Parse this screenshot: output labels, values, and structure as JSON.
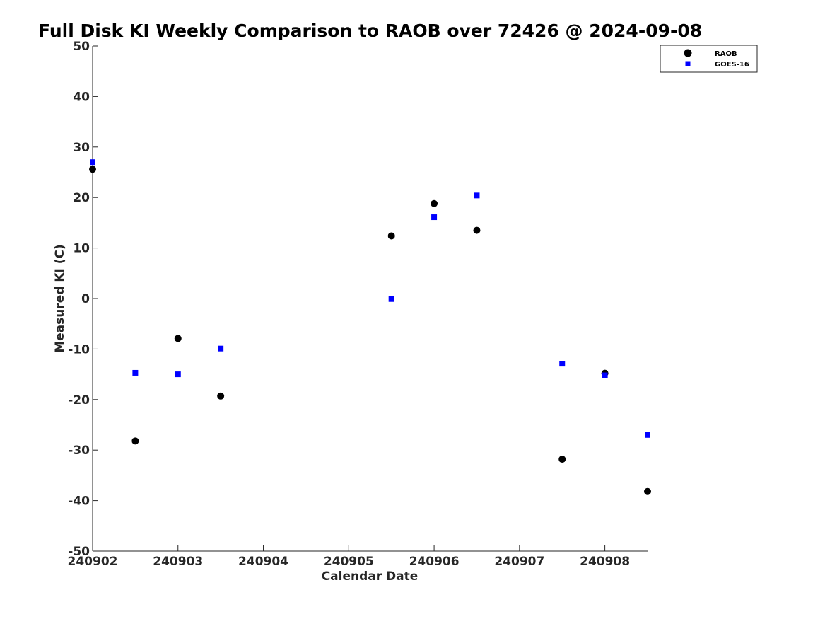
{
  "chart_data": {
    "type": "scatter",
    "title": "Full Disk KI Weekly Comparison to RAOB over 72426 @ 2024-09-08",
    "xlabel": "Calendar Date",
    "ylabel": "Measured KI (C)",
    "xlim": [
      "2024-09-02T00:00",
      "2024-09-08T12:00"
    ],
    "ylim": [
      -50,
      50
    ],
    "x_ticks": [
      "2024-09-02",
      "2024-09-03",
      "2024-09-04",
      "2024-09-05",
      "2024-09-06",
      "2024-09-07",
      "2024-09-08"
    ],
    "x_tick_labels": [
      "240902",
      "240903",
      "240904",
      "240905",
      "240906",
      "240907",
      "240908"
    ],
    "y_ticks": [
      -50,
      -40,
      -30,
      -20,
      -10,
      0,
      10,
      20,
      30,
      40,
      50
    ],
    "y_tick_labels": [
      "-50",
      "-40",
      "-30",
      "-20",
      "-10",
      "0",
      "10",
      "20",
      "30",
      "40",
      "50"
    ],
    "grid": false,
    "legend_position": "top-right",
    "series": [
      {
        "name": "RAOB",
        "marker": "circle",
        "color": "#000000",
        "points": [
          {
            "x": "2024-09-02T00:00",
            "y": 25.6
          },
          {
            "x": "2024-09-02T12:00",
            "y": -28.2
          },
          {
            "x": "2024-09-03T00:00",
            "y": -7.9
          },
          {
            "x": "2024-09-03T12:00",
            "y": -19.3
          },
          {
            "x": "2024-09-05T12:00",
            "y": 12.4
          },
          {
            "x": "2024-09-06T00:00",
            "y": 18.8
          },
          {
            "x": "2024-09-06T12:00",
            "y": 13.5
          },
          {
            "x": "2024-09-07T12:00",
            "y": -31.8
          },
          {
            "x": "2024-09-08T00:00",
            "y": -14.8
          },
          {
            "x": "2024-09-08T12:00",
            "y": -38.2
          }
        ]
      },
      {
        "name": "GOES-16",
        "marker": "square",
        "color": "#0000ff",
        "points": [
          {
            "x": "2024-09-02T00:00",
            "y": 27.0
          },
          {
            "x": "2024-09-02T12:00",
            "y": -14.7
          },
          {
            "x": "2024-09-03T00:00",
            "y": -15.0
          },
          {
            "x": "2024-09-03T12:00",
            "y": -9.9
          },
          {
            "x": "2024-09-05T12:00",
            "y": -0.1
          },
          {
            "x": "2024-09-06T00:00",
            "y": 16.1
          },
          {
            "x": "2024-09-06T12:00",
            "y": 20.4
          },
          {
            "x": "2024-09-07T12:00",
            "y": -12.9
          },
          {
            "x": "2024-09-08T00:00",
            "y": -15.2
          },
          {
            "x": "2024-09-08T12:00",
            "y": -27.0
          }
        ]
      }
    ]
  }
}
